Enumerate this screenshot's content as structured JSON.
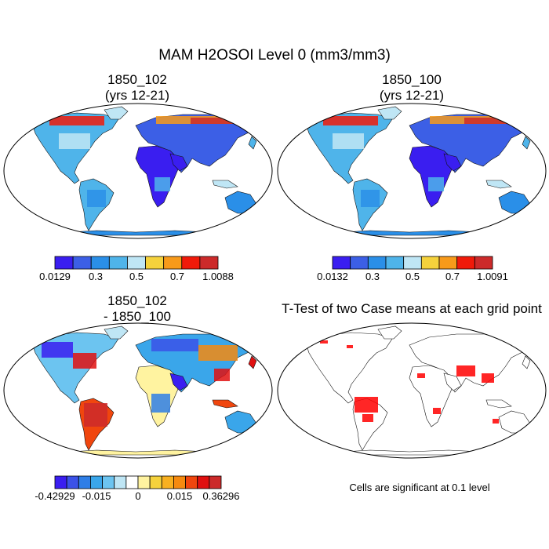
{
  "figure": {
    "title": "MAM H2OSOI Level 0 (mm3/mm3)",
    "panels": [
      {
        "id": "p1",
        "title_line1": "1850_102",
        "title_line2": "(yrs 12-21)",
        "colorbar": {
          "colors": [
            "#3a1ef0",
            "#3c5fe6",
            "#2a8fe8",
            "#4fb4ea",
            "#bfe6f5",
            "#f5d23c",
            "#f79a1a",
            "#f01a0a",
            "#cc2a2a"
          ],
          "labels": [
            "0.0129",
            "0.3",
            "0.5",
            "0.7",
            "1.0088"
          ]
        }
      },
      {
        "id": "p2",
        "title_line1": "1850_100",
        "title_line2": "(yrs 12-21)",
        "colorbar": {
          "colors": [
            "#3a1ef0",
            "#3c5fe6",
            "#2a8fe8",
            "#4fb4ea",
            "#bfe6f5",
            "#f5d23c",
            "#f79a1a",
            "#f01a0a",
            "#cc2a2a"
          ],
          "labels": [
            "0.0132",
            "0.3",
            "0.5",
            "0.7",
            "1.0091"
          ]
        }
      },
      {
        "id": "p3",
        "title_line1": "1850_102",
        "title_line2": "- 1850_100",
        "colorbar": {
          "colors": [
            "#3a1ef0",
            "#3b52e8",
            "#2f7ee6",
            "#3aa6ea",
            "#6cc4f0",
            "#bfe6f5",
            "#ffffff",
            "#fff3a0",
            "#f5d23c",
            "#f8b020",
            "#f58a10",
            "#f0460e",
            "#e01010",
            "#cc2a2a"
          ],
          "labels": [
            "-0.42929",
            "-0.015",
            "0",
            "0.015",
            "0.36296"
          ]
        }
      },
      {
        "id": "p4",
        "title": "T-Test of two Case means at each grid point",
        "note": "Cells are significant at 0.1 level"
      }
    ]
  }
}
